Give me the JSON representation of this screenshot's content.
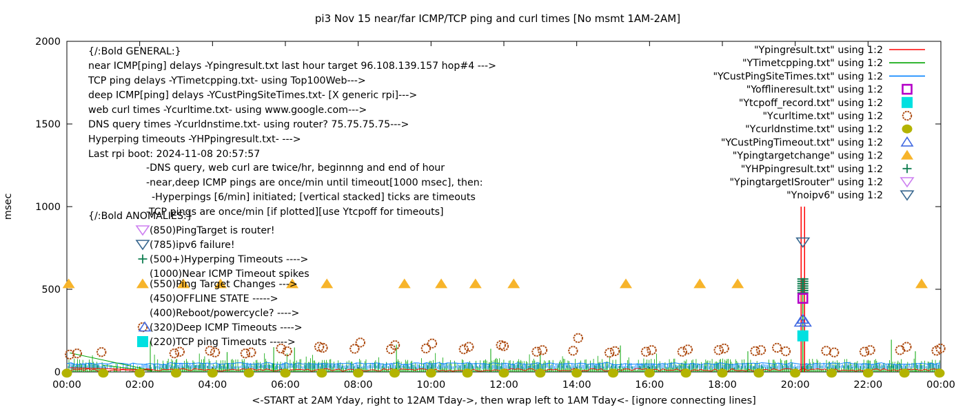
{
  "chart_data": {
    "type": "line",
    "title": "pi3 Nov 15  near/far ICMP/TCP ping and curl times [No msmt 1AM-2AM]",
    "xlabel": "<-START at 2AM Yday, right to 12AM Tday->, then wrap left to 1AM Tday<- [ignore connecting lines]",
    "ylabel": "msec",
    "ylim": [
      0,
      2000
    ],
    "y_ticks": [
      0,
      500,
      1000,
      1500,
      2000
    ],
    "x_ticks": [
      "00:00",
      "02:00",
      "04:00",
      "06:00",
      "08:00",
      "10:00",
      "12:00",
      "14:00",
      "16:00",
      "18:00",
      "20:00",
      "22:00",
      "00:00"
    ],
    "xlim_hours": [
      0,
      24
    ],
    "grid": false,
    "legend_position": "top-right",
    "colors": {
      "red": "#ff0000",
      "green": "#00a400",
      "blue": "#0080ff",
      "magenta": "#b400c8",
      "cyan": "#00e0e0",
      "curl": "#ad4a10",
      "olive": "#b3b300",
      "blue_tri": "#4169e1",
      "orange_tri": "#f7b42a",
      "plus_green": "#0e7d50",
      "violet": "#cd7ff0",
      "steel": "#38678f"
    },
    "legend": [
      {
        "label": "\"Ypingresult.txt\" using 1:2",
        "marker": "line",
        "color_key": "red"
      },
      {
        "label": "\"YTimetcpping.txt\" using 1:2",
        "marker": "line",
        "color_key": "green"
      },
      {
        "label": "\"YCustPingSiteTimes.txt\" using 1:2",
        "marker": "line",
        "color_key": "blue"
      },
      {
        "label": "\"Yofflineresult.txt\" using 1:2",
        "marker": "square-open",
        "color_key": "magenta"
      },
      {
        "label": "\"Ytcpoff_record.txt\" using 1:2",
        "marker": "square-fill",
        "color_key": "cyan"
      },
      {
        "label": "\"Ycurltime.txt\" using 1:2",
        "marker": "circle-open",
        "color_key": "curl"
      },
      {
        "label": "\"Ycurldnstime.txt\" using 1:2",
        "marker": "circle-fill",
        "color_key": "olive"
      },
      {
        "label": "\"YCustPingTimeout.txt\" using 1:2",
        "marker": "tri-up-open",
        "color_key": "blue_tri"
      },
      {
        "label": "\"Ypingtargetchange\" using 1:2",
        "marker": "tri-up-fill",
        "color_key": "orange_tri"
      },
      {
        "label": "\"YHPpingresult.txt\" using 1:2",
        "marker": "plus",
        "color_key": "plus_green"
      },
      {
        "label": "\"YpingtargetISrouter\" using 1:2",
        "marker": "tri-down-open",
        "color_key": "violet"
      },
      {
        "label": "\"Ynoipv6\" using 1:2",
        "marker": "tri-down-open",
        "color_key": "steel"
      }
    ],
    "annotations": {
      "general_header": "{/:Bold GENERAL:}",
      "general": [
        "near ICMP[ping] delays -Ypingresult.txt last hour target 96.108.139.157 hop#4 --->",
        "TCP ping delays -YTimetcpping.txt- using Top100Web--->",
        "deep ICMP[ping] delays -YCustPingSiteTimes.txt- [X generic rpi]--->",
        "web curl times -Ycurltime.txt- using www.google.com--->",
        "DNS query times -Ycurldnstime.txt- using router? 75.75.75.75--->",
        "Hyperping timeouts -YHPpingresult.txt- --->",
        "Last rpi boot: 2024-11-08 20:57:57"
      ],
      "notes": [
        "-DNS query, web curl are twice/hr, beginnng and end of hour",
        "-near,deep ICMP pings are once/min until timeout[1000 msec], then:",
        "-Hyperpings [6/min] initiated; [vertical stacked] ticks are timeouts",
        "-TCP pings are once/min [if plotted][use Ytcpoff for timeouts]"
      ],
      "anomalies_header": "{/:Bold ANOMALIES:}",
      "anomalies": [
        {
          "icons": [
            [
              "tri-down-open",
              "violet"
            ]
          ],
          "label": "(850)PingTarget is router!"
        },
        {
          "icons": [
            [
              "tri-down-open",
              "steel"
            ]
          ],
          "label": "(785)ipv6 failure!"
        },
        {
          "icons": [
            [
              "plus",
              "plus_green"
            ]
          ],
          "label": "(500+)Hyperping Timeouts ---->"
        },
        {
          "icons": [],
          "label": "(1000)Near ICMP Timeout spikes"
        },
        {
          "icons": [],
          "label": "(550)Ping Target Changes --->"
        },
        {
          "icons": [],
          "label": "(450)OFFLINE STATE ----->"
        },
        {
          "icons": [],
          "label": "(400)Reboot/powercycle? ---->"
        },
        {
          "icons": [
            [
              "circle-open",
              "curl"
            ],
            [
              "tri-up-open",
              "blue_tri"
            ]
          ],
          "label": "(320)Deep ICMP Timeouts ---->"
        },
        {
          "icons": [
            [
              "square-fill",
              "cyan"
            ]
          ],
          "label": "(220)TCP ping Timeouts ----->"
        }
      ]
    },
    "series": {
      "ping_target_change": {
        "value_msec": 532,
        "hours": [
          0.05,
          2.08,
          3.2,
          4.22,
          6.19,
          7.14,
          9.27,
          10.28,
          11.22,
          12.27,
          15.35,
          17.38,
          18.42,
          23.47
        ]
      },
      "curl_times_points": [
        [
          0.08,
          105
        ],
        [
          0.28,
          112
        ],
        [
          0.95,
          120
        ],
        [
          2.95,
          112
        ],
        [
          3.1,
          122
        ],
        [
          3.93,
          128
        ],
        [
          4.07,
          118
        ],
        [
          4.9,
          112
        ],
        [
          5.06,
          118
        ],
        [
          5.88,
          142
        ],
        [
          6.05,
          125
        ],
        [
          6.93,
          152
        ],
        [
          7.03,
          146
        ],
        [
          7.9,
          140
        ],
        [
          8.06,
          178
        ],
        [
          8.9,
          138
        ],
        [
          9.01,
          162
        ],
        [
          9.86,
          142
        ],
        [
          10.03,
          172
        ],
        [
          10.9,
          137
        ],
        [
          11.04,
          152
        ],
        [
          11.92,
          162
        ],
        [
          12.0,
          156
        ],
        [
          12.9,
          122
        ],
        [
          13.06,
          132
        ],
        [
          13.9,
          128
        ],
        [
          14.04,
          205
        ],
        [
          14.9,
          116
        ],
        [
          15.05,
          126
        ],
        [
          15.9,
          122
        ],
        [
          16.06,
          132
        ],
        [
          16.9,
          122
        ],
        [
          17.05,
          136
        ],
        [
          17.9,
          132
        ],
        [
          18.05,
          142
        ],
        [
          18.9,
          126
        ],
        [
          19.06,
          132
        ],
        [
          19.5,
          146
        ],
        [
          19.74,
          125
        ],
        [
          20.85,
          128
        ],
        [
          21.07,
          118
        ],
        [
          21.9,
          122
        ],
        [
          22.06,
          132
        ],
        [
          22.88,
          132
        ],
        [
          23.06,
          152
        ],
        [
          23.88,
          128
        ],
        [
          23.99,
          142
        ]
      ],
      "dns_times": {
        "value_msec": 5,
        "hours": [
          0,
          1,
          2,
          3,
          4,
          5,
          6,
          7,
          8,
          9,
          10,
          11,
          12,
          13,
          14,
          15,
          16,
          17,
          18,
          19,
          20,
          21,
          22,
          23,
          24
        ]
      },
      "near_icmp_timeout_spike": {
        "hour": 20.21,
        "peak_msec": 1000,
        "lines": 2
      },
      "hyperping_timeout_stack": {
        "hour": 20.21,
        "from_msec": 478,
        "to_msec": 562,
        "ticks": 7
      },
      "noipv6_marker": {
        "hour": 20.21,
        "value_msec": 785
      },
      "offline_marker": {
        "hour": 20.21,
        "value_msec": 445
      },
      "tcp_timeout_marker": {
        "hour": 20.21,
        "value_msec": 218
      },
      "deep_icmp_timeout_markers": [
        [
          20.14,
          300
        ],
        [
          20.28,
          300
        ],
        [
          20.21,
          318
        ]
      ],
      "green_spikes": [
        [
          2.29,
          185
        ],
        [
          4.4,
          120
        ],
        [
          5.68,
          150
        ],
        [
          6.25,
          148
        ],
        [
          9.05,
          165
        ],
        [
          11.64,
          140
        ],
        [
          13.0,
          118
        ],
        [
          15.2,
          160
        ],
        [
          18.7,
          125
        ],
        [
          22.64,
          195
        ],
        [
          23.3,
          125
        ]
      ],
      "baseline_noise": {
        "red_msec": 12,
        "green_max_msec": 88,
        "blue_msec": 50,
        "gap_hours": [
          1.0,
          2.35
        ]
      }
    }
  }
}
